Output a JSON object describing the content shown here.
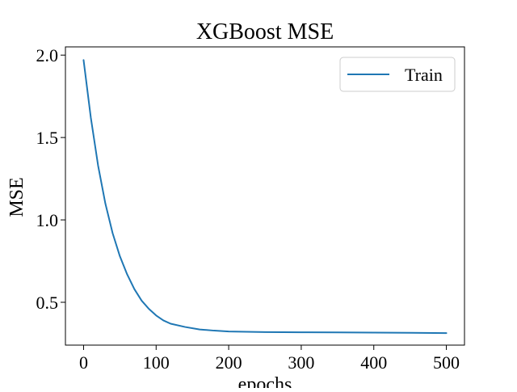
{
  "chart_data": {
    "type": "line",
    "title": "XGBoost MSE",
    "xlabel": "epochs",
    "ylabel": "MSE",
    "xlim": [
      -25,
      525
    ],
    "ylim": [
      0.24,
      2.05
    ],
    "xticks": [
      0,
      100,
      200,
      300,
      400,
      500
    ],
    "xtick_labels": [
      "0",
      "100",
      "200",
      "300",
      "400",
      "500"
    ],
    "yticks": [
      0.5,
      1.0,
      1.5,
      2.0
    ],
    "ytick_labels": [
      "0.5",
      "1.0",
      "1.5",
      "2.0"
    ],
    "grid": false,
    "legend_position": "top-right",
    "series": [
      {
        "name": "Train",
        "color": "#1f77b4",
        "x": [
          0,
          10,
          20,
          30,
          40,
          50,
          60,
          70,
          80,
          90,
          100,
          110,
          120,
          140,
          160,
          180,
          200,
          250,
          300,
          350,
          400,
          450,
          500
        ],
        "y": [
          1.97,
          1.62,
          1.33,
          1.1,
          0.92,
          0.78,
          0.67,
          0.58,
          0.51,
          0.46,
          0.42,
          0.39,
          0.37,
          0.35,
          0.335,
          0.328,
          0.323,
          0.319,
          0.318,
          0.317,
          0.316,
          0.315,
          0.313
        ]
      }
    ]
  }
}
